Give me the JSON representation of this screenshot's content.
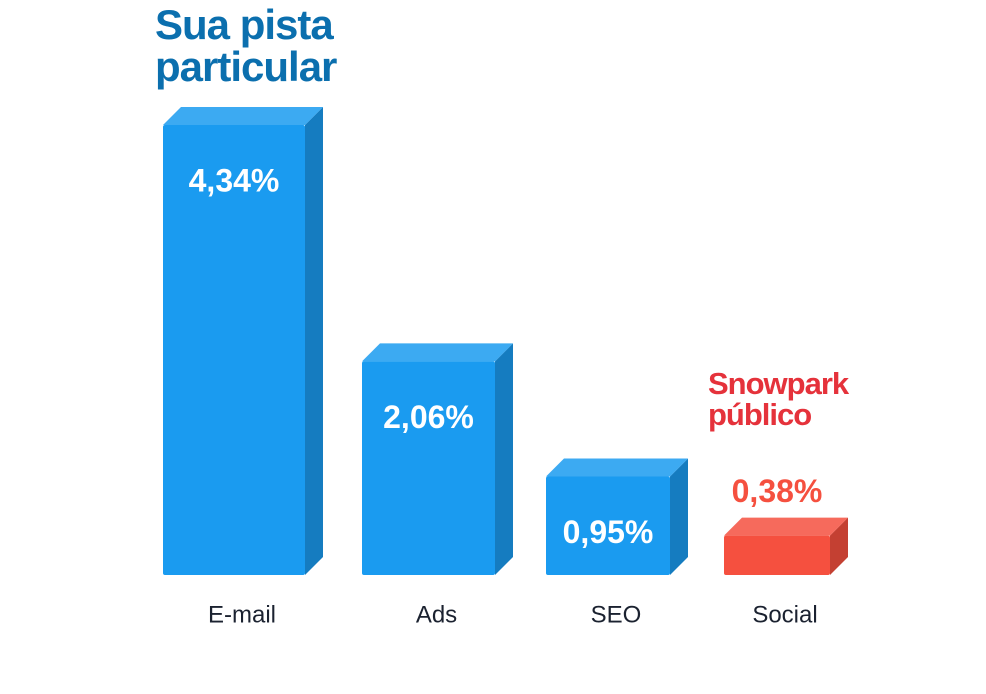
{
  "chart_data": {
    "type": "bar",
    "categories": [
      "E-mail",
      "Ads",
      "SEO",
      "Social"
    ],
    "values": [
      4.34,
      2.06,
      0.95,
      0.38
    ],
    "value_labels": [
      "4,34%",
      "2,06%",
      "0,95%",
      "0,38%"
    ],
    "colors": [
      "#1a9bf0",
      "#1a9bf0",
      "#1a9bf0",
      "#f5503f"
    ],
    "annotations": [
      {
        "text": "Sua pista particular",
        "color": "#0b6fae"
      },
      {
        "text": "Snowpark público",
        "color": "#e5323b"
      }
    ]
  }
}
